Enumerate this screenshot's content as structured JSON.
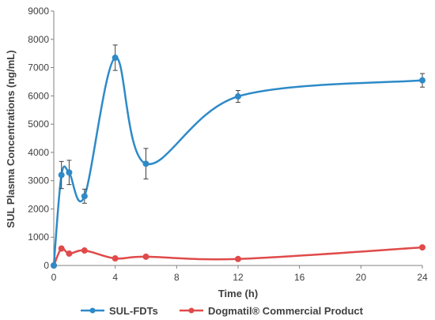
{
  "chart_data": {
    "type": "line",
    "xlabel": "Time (h)",
    "ylabel": "SUL Plasma Concentrations (ng/mL)",
    "xlim": [
      0,
      24
    ],
    "ylim": [
      0,
      9000
    ],
    "x_ticks": [
      0,
      4,
      8,
      12,
      16,
      20,
      24
    ],
    "y_ticks": [
      0,
      1000,
      2000,
      3000,
      4000,
      5000,
      6000,
      7000,
      8000,
      9000
    ],
    "grid": false,
    "smooth": true,
    "legend_position": "bottom",
    "series": [
      {
        "name": "SUL-FDTs",
        "color": "#2E8AC8",
        "x": [
          0,
          0.5,
          1,
          2,
          4,
          6,
          12,
          24
        ],
        "y": [
          0,
          3200,
          3290,
          2450,
          7350,
          3600,
          5980,
          6550
        ],
        "error": [
          0,
          480,
          430,
          250,
          450,
          540,
          210,
          240
        ]
      },
      {
        "name": "Dogmatil® Commercial Product",
        "color": "#E04A4A",
        "x": [
          0,
          0.5,
          1,
          2,
          4,
          6,
          12,
          24
        ],
        "y": [
          0,
          600,
          420,
          530,
          250,
          310,
          230,
          640
        ]
      }
    ]
  }
}
